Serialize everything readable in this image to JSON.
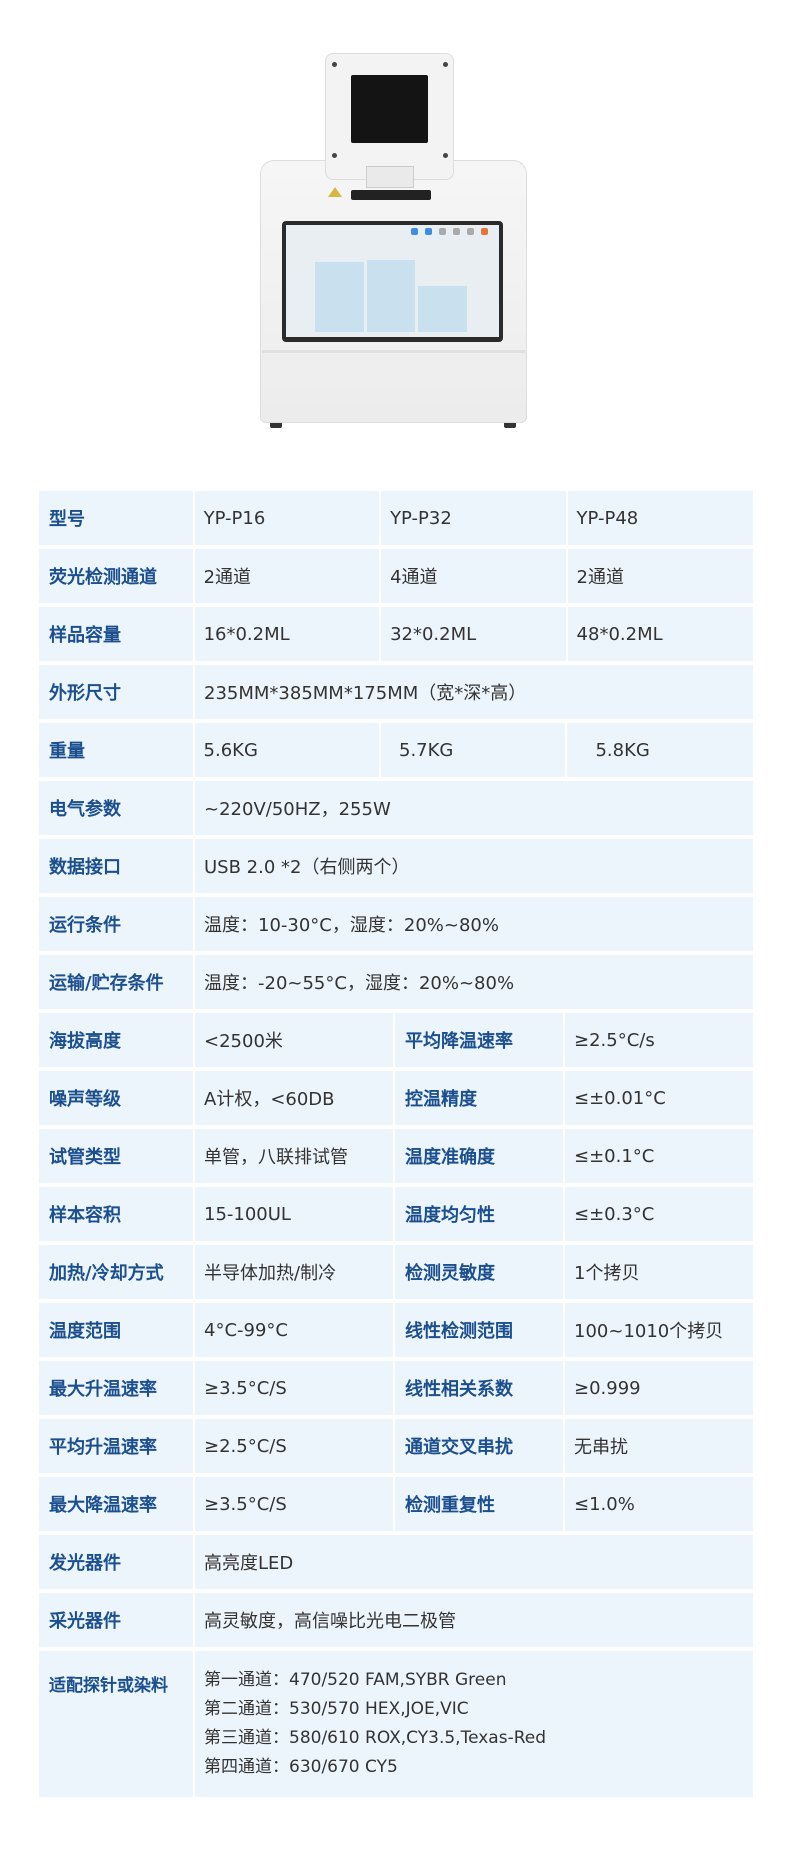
{
  "product_image_alt": "device",
  "colors": {
    "label": "#1b4f8e",
    "cell_bg": "#edf5fc",
    "text": "#333333"
  },
  "table": {
    "three_col_rows": [
      {
        "label": "型号",
        "values": [
          "YP-P16",
          "YP-P32",
          "YP-P48"
        ]
      },
      {
        "label": "荧光检测通道",
        "values": [
          "2通道",
          "4通道",
          "2通道"
        ]
      },
      {
        "label": "样品容量",
        "values": [
          "16*0.2ML",
          "32*0.2ML",
          "48*0.2ML"
        ]
      }
    ],
    "dimension": {
      "label": "外形尺寸",
      "value": "235MM*385MM*175MM（宽*深*高）"
    },
    "weight": {
      "label": "重量",
      "values": [
        "5.6KG",
        "5.7KG",
        "5.8KG"
      ]
    },
    "span_rows": [
      {
        "label": "电气参数",
        "value": "~220V/50HZ，255W"
      },
      {
        "label": "数据接口",
        "value": "USB 2.0 *2（右侧两个）"
      },
      {
        "label": "运行条件",
        "value": "温度：10-30°C，湿度：20%~80%"
      },
      {
        "label": "运输/贮存条件",
        "value": "温度：-20~55°C，湿度：20%~80%"
      }
    ],
    "pair_rows": [
      {
        "l1": "海拔高度",
        "v1": "<2500米",
        "l2": "平均降温速率",
        "v2": "≥2.5°C/s"
      },
      {
        "l1": "噪声等级",
        "v1": "A计权，<60DB",
        "l2": "控温精度",
        "v2": "≤±0.01°C"
      },
      {
        "l1": "试管类型",
        "v1": "单管，八联排试管",
        "l2": "温度准确度",
        "v2": "≤±0.1°C"
      },
      {
        "l1": "样本容积",
        "v1": "15-100UL",
        "l2": "温度均匀性",
        "v2": "≤±0.3°C"
      },
      {
        "l1": "加热/冷却方式",
        "v1": "半导体加热/制冷",
        "l2": "检测灵敏度",
        "v2": "1个拷贝"
      },
      {
        "l1": "温度范围",
        "v1": "4°C-99°C",
        "l2": "线性检测范围",
        "v2": "100~1010个拷贝"
      },
      {
        "l1": "最大升温速率",
        "v1": "≥3.5°C/S",
        "l2": "线性相关系数",
        "v2": "≥0.999"
      },
      {
        "l1": "平均升温速率",
        "v1": "≥2.5°C/S",
        "l2": "通道交叉串扰",
        "v2": "无串扰"
      },
      {
        "l1": "最大降温速率",
        "v1": "≥3.5°C/S",
        "l2": "检测重复性",
        "v2": "≤1.0%"
      }
    ],
    "tail_rows": [
      {
        "label": "发光器件",
        "value": "高亮度LED"
      },
      {
        "label": "采光器件",
        "value": "高灵敏度，高信噪比光电二极管"
      }
    ],
    "dyes": {
      "label": "适配探针或染料",
      "lines": [
        "第一通道：470/520   FAM,SYBR Green",
        "第二通道：530/570   HEX,JOE,VIC",
        "第三通道：580/610   ROX,CY3.5,Texas-Red",
        "第四通道：630/670   CY5"
      ]
    }
  }
}
